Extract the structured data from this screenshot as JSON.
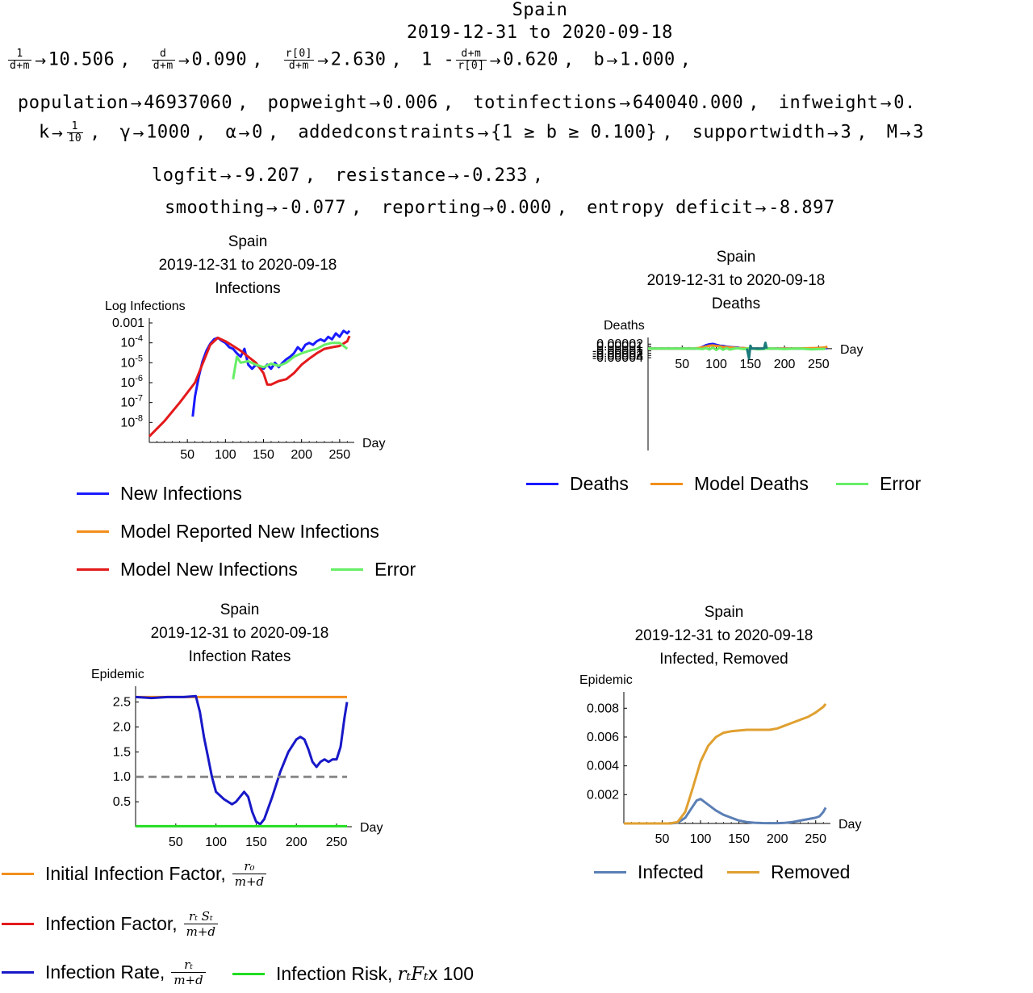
{
  "header": {
    "country": "Spain",
    "date_range": "2019-12-31 to 2020-09-18",
    "line1": [
      {
        "frac_num": "1",
        "frac_den": "d+m",
        "value": "10.506"
      },
      {
        "frac_num": "d",
        "frac_den": "d+m",
        "value": "0.090"
      },
      {
        "frac_num": "r[0]",
        "frac_den": "d+m",
        "value": "2.630"
      },
      {
        "prefix": "1 -",
        "frac_num": "d+m",
        "frac_den": "r[0]",
        "value": "0.620"
      },
      {
        "key": "b",
        "value": "1.000"
      }
    ],
    "line2": [
      {
        "key": "population",
        "value": "46937060"
      },
      {
        "key": "popweight",
        "value": "0.006"
      },
      {
        "key": "totinfections",
        "value": "640040.000"
      },
      {
        "key": "infweight",
        "value": "0."
      }
    ],
    "line3": {
      "k_key": "k",
      "k_num": "1",
      "k_den": "10",
      "items": [
        {
          "key": "γ",
          "value": "1000"
        },
        {
          "key": "α",
          "value": "0"
        },
        {
          "key": "addedconstraints",
          "value": "{1 ≥ b ≥ 0.100}"
        },
        {
          "key": "supportwidth",
          "value": "3"
        },
        {
          "key": "M",
          "value": "3"
        }
      ]
    },
    "line4": [
      {
        "key": "logfit",
        "value": "-9.207"
      },
      {
        "key": "resistance",
        "value": "-0.233"
      }
    ],
    "line5": [
      {
        "key": "smoothing",
        "value": "-0.077"
      },
      {
        "key": "reporting",
        "value": "0.000"
      },
      {
        "key": "entropy deficit",
        "value": "-8.897"
      }
    ]
  },
  "colors": {
    "blue": "#1a1aff",
    "orange": "#f28e1c",
    "red": "#e31a1c",
    "green": "#66ee66",
    "teal": "#1b7a7a",
    "gray": "#888888",
    "steel": "#5b7fb5",
    "gold": "#e0a030",
    "bright_green": "#22dd22",
    "line_blue": "#1818c8"
  },
  "charts": {
    "infections": {
      "title1": "Spain",
      "title2": "2019-12-31 to 2020-09-18",
      "title3": "Infections",
      "legend": {
        "a": "New Infections",
        "b": "Model Reported New Infections",
        "c": "Model New Infections",
        "d": "Error"
      }
    },
    "deaths": {
      "title1": "Spain",
      "title2": "2019-12-31 to 2020-09-18",
      "title3": "Deaths",
      "legend": {
        "a": "Deaths",
        "b": "Model Deaths",
        "c": "Error"
      }
    },
    "rates": {
      "title1": "Spain",
      "title2": "2019-12-31 to 2020-09-18",
      "title3": "Infection Rates",
      "legend": {
        "a": "Initial Infection Factor,",
        "a_num": "r₀",
        "a_den": "m+d",
        "b": "Infection Factor,",
        "b_num": "rₜ Sₜ",
        "b_den": "m+d",
        "c": "Infection Rate,",
        "c_num": "rₜ",
        "c_den": "m+d",
        "d": "Infection Risk,",
        "d_math": "rₜFₜ",
        "d_tail": " x 100"
      }
    },
    "removed": {
      "title1": "Spain",
      "title2": "2019-12-31 to 2020-09-18",
      "title3": "Infected, Removed",
      "legend": {
        "a": "Infected",
        "b": "Removed"
      }
    }
  },
  "chart_data": [
    {
      "type": "line",
      "title": "Infections",
      "xlabel": "Day",
      "ylabel": "Log Infections",
      "log_y": true,
      "xlim": [
        0,
        265
      ],
      "ylim": [
        1e-09,
        0.001
      ],
      "x_ticks": [
        50,
        100,
        150,
        200,
        250
      ],
      "y_ticks": [
        1e-08,
        1e-07,
        1e-06,
        1e-05,
        0.0001,
        0.001
      ],
      "y_tick_labels": [
        "10^-8",
        "10^-7",
        "10^-6",
        "10^-5",
        "10^-4",
        "0.001"
      ],
      "series": [
        {
          "name": "New Infections",
          "color": "#1a1aff",
          "x": [
            57,
            60,
            65,
            70,
            75,
            80,
            85,
            90,
            95,
            100,
            105,
            110,
            115,
            120,
            125,
            130,
            135,
            140,
            145,
            150,
            155,
            160,
            165,
            170,
            175,
            180,
            185,
            190,
            195,
            200,
            205,
            210,
            215,
            220,
            225,
            230,
            235,
            240,
            245,
            250,
            255,
            260,
            263
          ],
          "y": [
            2e-08,
            2e-07,
            2e-06,
            1.2e-05,
            4e-05,
            9e-05,
            0.00015,
            0.00018,
            0.00013,
            0.0001,
            6e-05,
            5e-05,
            3e-05,
            2e-05,
            5e-05,
            8e-06,
            5e-06,
            8e-06,
            6e-06,
            5e-06,
            8e-06,
            5e-06,
            1e-05,
            6e-06,
            1e-05,
            1.5e-05,
            2e-05,
            3e-05,
            6e-05,
            4e-05,
            8e-05,
            0.0001,
            8e-05,
            0.00012,
            0.00015,
            0.00012,
            0.0002,
            0.00015,
            0.0003,
            0.0002,
            0.0004,
            0.0003,
            0.0004
          ]
        },
        {
          "name": "Model New Infections",
          "color": "#e31a1c",
          "x": [
            0,
            20,
            40,
            60,
            80,
            90,
            100,
            110,
            120,
            130,
            140,
            150,
            155,
            160,
            170,
            180,
            190,
            200,
            210,
            220,
            230,
            240,
            250,
            260,
            263
          ],
          "y": [
            2e-09,
            1.2e-08,
            1e-07,
            1e-06,
            8e-05,
            0.00018,
            0.00012,
            7e-05,
            4e-05,
            2e-05,
            1e-05,
            3e-06,
            8e-07,
            8e-07,
            1.2e-06,
            1.5e-06,
            3e-06,
            8e-06,
            1.6e-05,
            3e-05,
            5e-05,
            6e-05,
            7e-05,
            0.00012,
            0.00022
          ]
        },
        {
          "name": "Error",
          "color": "#66ee66",
          "x": [
            110,
            115,
            120,
            130,
            140,
            150,
            160,
            170,
            180,
            190,
            200,
            210,
            220,
            230,
            240,
            250,
            260
          ],
          "y": [
            1.5e-06,
            2e-05,
            1e-05,
            1.2e-05,
            8e-06,
            6e-06,
            9e-06,
            7e-06,
            1e-05,
            2e-05,
            3e-05,
            4e-05,
            5e-05,
            8e-05,
            0.0001,
            0.0001,
            5e-05
          ]
        }
      ]
    },
    {
      "type": "line",
      "title": "Deaths",
      "xlabel": "Day",
      "ylabel": "Deaths",
      "xlim": [
        0,
        265
      ],
      "ylim": [
        -0.00045,
        2.8e-05
      ],
      "x_ticks": [
        50,
        100,
        150,
        200,
        250
      ],
      "y_ticks": [
        -4e-05,
        -3e-05,
        -2e-05,
        -1e-05,
        1e-05,
        2e-05
      ],
      "series": [
        {
          "name": "Deaths",
          "color": "#1a1aff",
          "x": [
            0,
            60,
            70,
            75,
            80,
            85,
            90,
            95,
            100,
            105,
            110,
            115,
            120,
            125,
            130,
            135,
            140,
            145,
            150,
            160,
            180,
            200,
            220,
            240,
            250,
            255,
            260,
            263
          ],
          "y": [
            0,
            0,
            0,
            2e-06,
            8e-06,
            1.5e-05,
            1.9e-05,
            2.1e-05,
            1.7e-05,
            1.3e-05,
            1.2e-05,
            9e-06,
            7e-06,
            6e-06,
            5e-06,
            3e-06,
            2e-06,
            1e-06,
            1e-06,
            0,
            0,
            0,
            0,
            1e-06,
            2e-06,
            1e-06,
            3e-06,
            2e-06
          ]
        },
        {
          "name": "Model Deaths",
          "color": "#f28e1c",
          "x": [
            0,
            60,
            70,
            80,
            90,
            95,
            100,
            110,
            120,
            130,
            140,
            150,
            160,
            180,
            200,
            220,
            240,
            250,
            260,
            263
          ],
          "y": [
            0,
            0,
            1e-06,
            6e-06,
            1.3e-05,
            1.4e-05,
            1.2e-05,
            8e-06,
            5e-06,
            3e-06,
            2e-06,
            1e-06,
            5e-07,
            0,
            5e-07,
            1e-06,
            2e-06,
            3e-06,
            6e-06,
            9e-06
          ]
        },
        {
          "name": "Error",
          "color": "#66ee66",
          "x": [
            0,
            70,
            80,
            85,
            90,
            95,
            100,
            105,
            110,
            115,
            120,
            130,
            140,
            150,
            160,
            180,
            200,
            220,
            240,
            250,
            260
          ],
          "y": [
            0,
            0,
            -2e-06,
            3e-06,
            -4e-06,
            5e-06,
            -6e-06,
            4e-06,
            -5e-06,
            2e-06,
            -4e-06,
            2e-06,
            -2e-06,
            2e-06,
            -3e-06,
            1e-06,
            -2e-06,
            1e-06,
            -3e-06,
            -2e-06,
            -1e-06
          ]
        },
        {
          "name": "",
          "color": "#1b7a7a",
          "x": [
            145,
            148,
            150,
            152,
            170,
            172,
            174
          ],
          "y": [
            0,
            -4.4e-05,
            1.3e-05,
            0,
            0,
            2.6e-05,
            0
          ]
        }
      ]
    },
    {
      "type": "line",
      "title": "Infection Rates",
      "xlabel": "Day",
      "ylabel": "Epidemic",
      "xlim": [
        0,
        265
      ],
      "ylim": [
        0,
        2.72
      ],
      "x_ticks": [
        50,
        100,
        150,
        200,
        250
      ],
      "y_ticks": [
        0.5,
        1.0,
        1.5,
        2.0,
        2.5
      ],
      "series": [
        {
          "name": "Initial Infection Factor",
          "color": "#f28e1c",
          "x": [
            0,
            263
          ],
          "y": [
            2.6,
            2.6
          ]
        },
        {
          "name": "Infection Rate",
          "color": "#1818c8",
          "x": [
            0,
            20,
            40,
            60,
            75,
            80,
            85,
            90,
            95,
            100,
            110,
            120,
            125,
            130,
            135,
            140,
            145,
            150,
            155,
            160,
            170,
            180,
            190,
            200,
            205,
            210,
            215,
            220,
            225,
            230,
            235,
            240,
            245,
            250,
            255,
            260,
            263
          ],
          "y": [
            2.6,
            2.58,
            2.6,
            2.6,
            2.62,
            2.3,
            1.8,
            1.4,
            1.0,
            0.7,
            0.55,
            0.45,
            0.5,
            0.6,
            0.7,
            0.6,
            0.3,
            0.1,
            0.05,
            0.15,
            0.6,
            1.1,
            1.5,
            1.75,
            1.8,
            1.75,
            1.55,
            1.3,
            1.2,
            1.3,
            1.35,
            1.3,
            1.35,
            1.35,
            1.6,
            2.2,
            2.5
          ]
        },
        {
          "name": "Infection Risk",
          "color": "#22dd22",
          "x": [
            0,
            263
          ],
          "y": [
            0.01,
            0.01
          ]
        },
        {
          "name": "",
          "color": "#888888",
          "x": [
            0,
            263
          ],
          "y": [
            1.0,
            1.0
          ]
        }
      ]
    },
    {
      "type": "line",
      "title": "Infected, Removed",
      "xlabel": "Day",
      "ylabel": "Epidemic",
      "xlim": [
        0,
        265
      ],
      "ylim": [
        0,
        0.0088
      ],
      "x_ticks": [
        50,
        100,
        150,
        200,
        250
      ],
      "y_ticks": [
        0.002,
        0.004,
        0.006,
        0.008
      ],
      "series": [
        {
          "name": "Infected",
          "color": "#5b7fb5",
          "x": [
            0,
            60,
            70,
            80,
            90,
            95,
            100,
            110,
            120,
            130,
            140,
            150,
            160,
            170,
            180,
            190,
            200,
            210,
            220,
            230,
            240,
            250,
            255,
            260,
            263
          ],
          "y": [
            0,
            0,
            5e-05,
            0.0004,
            0.0012,
            0.0016,
            0.0017,
            0.0013,
            0.0009,
            0.0006,
            0.0004,
            0.0002,
            0.0001,
            5e-05,
            3e-05,
            2e-05,
            2e-05,
            4e-05,
            0.0001,
            0.0002,
            0.0003,
            0.0004,
            0.0005,
            0.0008,
            0.0011
          ]
        },
        {
          "name": "Removed",
          "color": "#e0a030",
          "x": [
            0,
            60,
            70,
            80,
            90,
            100,
            110,
            120,
            130,
            140,
            150,
            160,
            170,
            180,
            190,
            200,
            210,
            220,
            230,
            240,
            250,
            260,
            263
          ],
          "y": [
            0,
            0,
            0.0001,
            0.0008,
            0.0025,
            0.0043,
            0.0054,
            0.006,
            0.0063,
            0.0064,
            0.00645,
            0.0065,
            0.0065,
            0.0065,
            0.0065,
            0.0066,
            0.0068,
            0.007,
            0.0072,
            0.0074,
            0.0077,
            0.0081,
            0.0083
          ]
        }
      ]
    }
  ]
}
